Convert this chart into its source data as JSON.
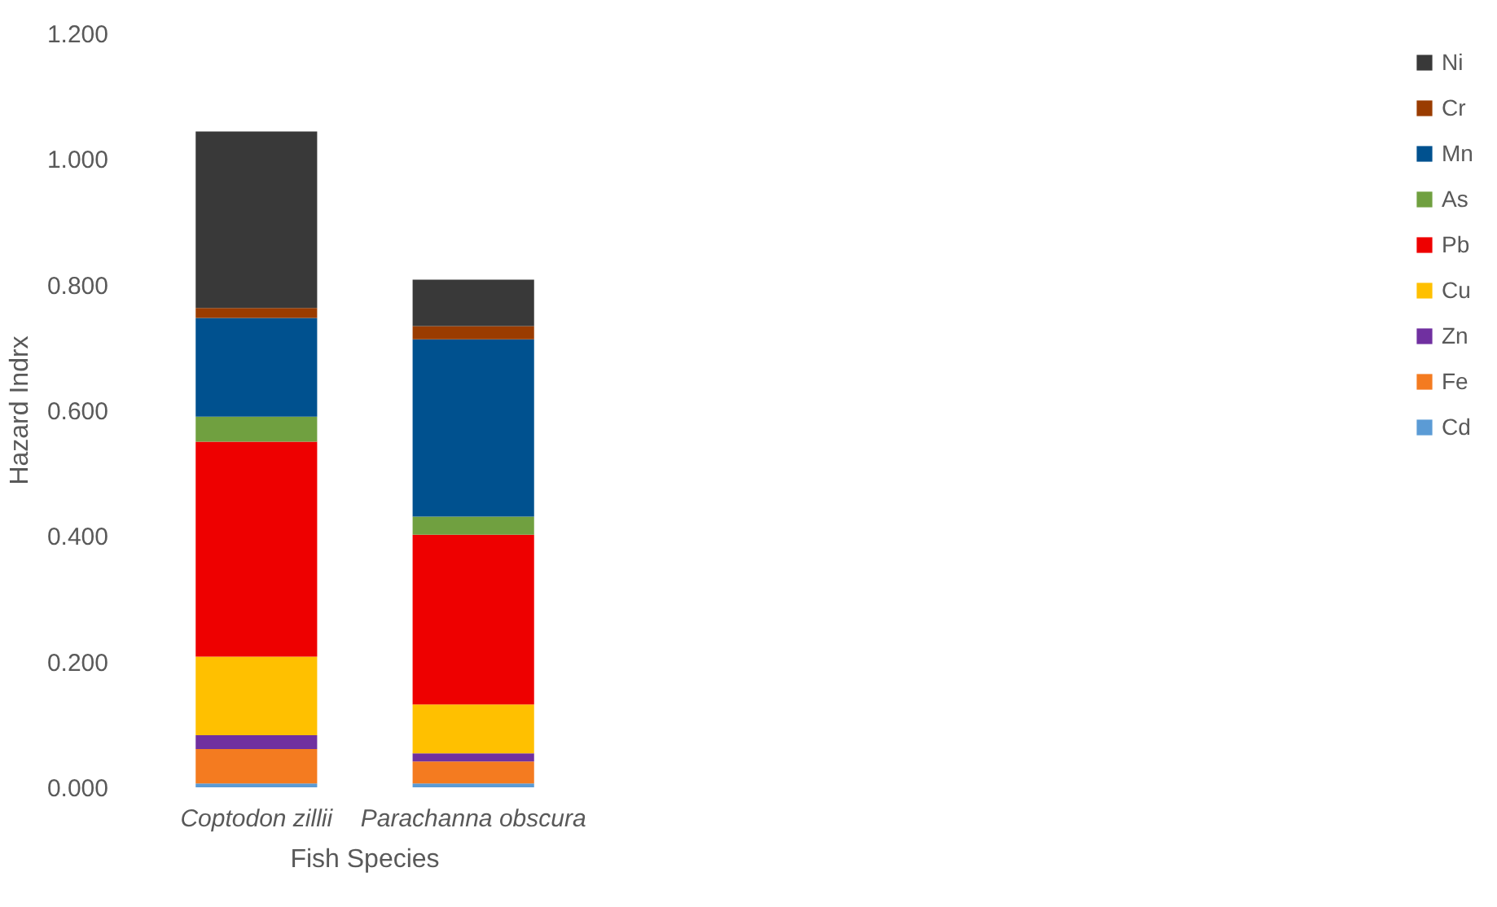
{
  "chart_data": {
    "type": "bar",
    "stacked": true,
    "xlabel": "Fish Species",
    "ylabel": "Hazard Indrx",
    "categories": [
      "Coptodon zillii",
      "Parachanna obscura"
    ],
    "series": [
      {
        "name": "Cd",
        "color": "#5b9bd5",
        "values": [
          0.006,
          0.006
        ]
      },
      {
        "name": "Fe",
        "color": "#f47b20",
        "values": [
          0.055,
          0.035
        ]
      },
      {
        "name": "Zn",
        "color": "#7030a0",
        "values": [
          0.022,
          0.013
        ]
      },
      {
        "name": "Cu",
        "color": "#ffc000",
        "values": [
          0.125,
          0.078
        ]
      },
      {
        "name": "Pb",
        "color": "#ee0000",
        "values": [
          0.342,
          0.27
        ]
      },
      {
        "name": "As",
        "color": "#70a040",
        "values": [
          0.04,
          0.029
        ]
      },
      {
        "name": "Mn",
        "color": "#00518f",
        "values": [
          0.157,
          0.282
        ]
      },
      {
        "name": "Cr",
        "color": "#9a3c00",
        "values": [
          0.016,
          0.021
        ]
      },
      {
        "name": "Ni",
        "color": "#393939",
        "values": [
          0.281,
          0.074
        ]
      }
    ],
    "ylim": [
      0,
      1.2
    ],
    "yticks": [
      {
        "value": 0,
        "label": "0.000"
      },
      {
        "value": 0.2,
        "label": "0.200"
      },
      {
        "value": 0.4,
        "label": "0.400"
      },
      {
        "value": 0.6,
        "label": "0.600"
      },
      {
        "value": 0.8,
        "label": "0.800"
      },
      {
        "value": 1.0,
        "label": "1.000"
      },
      {
        "value": 1.2,
        "label": "1.200"
      }
    ],
    "grid": false,
    "legend": "right"
  }
}
